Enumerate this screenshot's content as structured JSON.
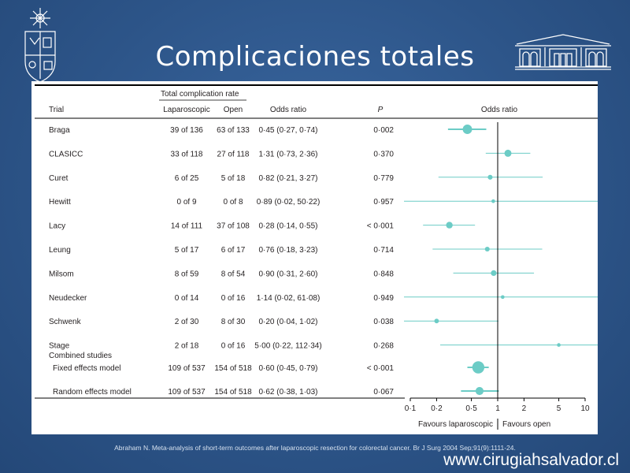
{
  "slide": {
    "title": "Complicaciones totales",
    "caption": "Abraham N. Meta-analysis of short-term outcomes after laparoscopic resection for colorectal cancer. Br J Surg 2004 Sep;91(9):1111-24.",
    "website": "www.cirugiahsalvador.cl"
  },
  "table": {
    "group_header": "Total complication rate",
    "columns": [
      "Trial",
      "Laparoscopic",
      "Open",
      "Odds ratio",
      "P"
    ],
    "section_label": "Combined studies"
  },
  "chart_data": {
    "type": "forest",
    "plot_title": "Odds ratio",
    "x_scale": "log",
    "xlim": [
      0.1,
      10
    ],
    "x_ticks": [
      0.1,
      0.2,
      0.5,
      1,
      2,
      5,
      10
    ],
    "x_tick_labels": [
      "0·1",
      "0·2",
      "0·5",
      "1",
      "2",
      "5",
      "10"
    ],
    "left_label": "Favours laparoscopic",
    "right_label": "Favours open",
    "rows": [
      {
        "trial": "Braga",
        "lap": "39 of 136",
        "open": "63 of 133",
        "or_text": "0·45 (0·27, 0·74)",
        "p": "0·002",
        "or": 0.45,
        "lo": 0.27,
        "hi": 0.74,
        "weight": 3
      },
      {
        "trial": "CLASICC",
        "lap": "33 of 118",
        "open": "27 of 118",
        "or_text": "1·31 (0·73, 2·36)",
        "p": "0·370",
        "or": 1.31,
        "lo": 0.73,
        "hi": 2.36,
        "weight": 2
      },
      {
        "trial": "Curet",
        "lap": "6 of 25",
        "open": "5 of 18",
        "or_text": "0·82 (0·21, 3·27)",
        "p": "0·779",
        "or": 0.82,
        "lo": 0.21,
        "hi": 3.27,
        "weight": 1
      },
      {
        "trial": "Hewitt",
        "lap": "0 of 9",
        "open": "0 of 8",
        "or_text": "0·89 (0·02, 50·22)",
        "p": "0·957",
        "or": 0.89,
        "lo": 0.02,
        "hi": 50.22,
        "weight": 0.5
      },
      {
        "trial": "Lacy",
        "lap": "14 of 111",
        "open": "37 of 108",
        "or_text": "0·28 (0·14, 0·55)",
        "p": "< 0·001",
        "or": 0.28,
        "lo": 0.14,
        "hi": 0.55,
        "weight": 1.8
      },
      {
        "trial": "Leung",
        "lap": "5 of 17",
        "open": "6 of 17",
        "or_text": "0·76 (0·18, 3·23)",
        "p": "0·714",
        "or": 0.76,
        "lo": 0.18,
        "hi": 3.23,
        "weight": 1
      },
      {
        "trial": "Milsom",
        "lap": "8 of 59",
        "open": "8 of 54",
        "or_text": "0·90 (0·31, 2·60)",
        "p": "0·848",
        "or": 0.9,
        "lo": 0.31,
        "hi": 2.6,
        "weight": 1.4
      },
      {
        "trial": "Neudecker",
        "lap": "0 of 14",
        "open": "0 of 16",
        "or_text": "1·14 (0·02, 61·08)",
        "p": "0·949",
        "or": 1.14,
        "lo": 0.02,
        "hi": 61.08,
        "weight": 0.5
      },
      {
        "trial": "Schwenk",
        "lap": "2 of 30",
        "open": "8 of 30",
        "or_text": "0·20 (0·04, 1·02)",
        "p": "0·038",
        "or": 0.2,
        "lo": 0.04,
        "hi": 1.02,
        "weight": 0.9
      },
      {
        "trial": "Stage",
        "lap": "2 of 18",
        "open": "0 of 16",
        "or_text": "5·00 (0·22, 112·34)",
        "p": "0·268",
        "or": 5.0,
        "lo": 0.22,
        "hi": 112.34,
        "weight": 0.5
      }
    ],
    "combined": [
      {
        "trial": "Fixed effects model",
        "lap": "109 of 537",
        "open": "154 of 518",
        "or_text": "0·60 (0·45, 0·79)",
        "p": "< 0·001",
        "or": 0.6,
        "lo": 0.45,
        "hi": 0.79,
        "weight": 4.2
      },
      {
        "trial": "Random effects model",
        "lap": "109 of 537",
        "open": "154 of 518",
        "or_text": "0·62 (0·38, 1·03)",
        "p": "0·067",
        "or": 0.62,
        "lo": 0.38,
        "hi": 1.03,
        "weight": 2.4
      }
    ],
    "colors": {
      "marker": "#6cccc6",
      "text": "#231f20",
      "rule": "#000000"
    }
  }
}
